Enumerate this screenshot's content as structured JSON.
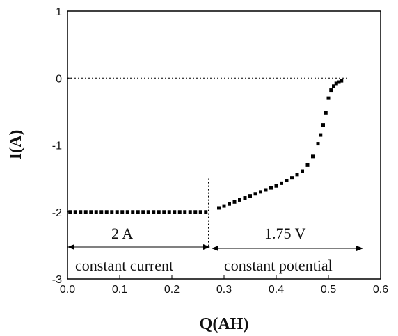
{
  "chart_data": {
    "type": "scatter",
    "xlabel": "Q(AH)",
    "ylabel": "I(A)",
    "xlim": [
      0.0,
      0.6
    ],
    "ylim": [
      -3,
      1
    ],
    "x_ticks": [
      "0.0",
      "0.1",
      "0.2",
      "0.3",
      "0.4",
      "0.5",
      "0.6"
    ],
    "y_ticks": [
      "1",
      "0",
      "-1",
      "-2",
      "-3"
    ],
    "grid": false,
    "series": [
      {
        "name": "",
        "color": "#000000",
        "x": [
          0.005,
          0.015,
          0.025,
          0.035,
          0.045,
          0.055,
          0.065,
          0.075,
          0.085,
          0.095,
          0.105,
          0.115,
          0.125,
          0.135,
          0.145,
          0.155,
          0.165,
          0.175,
          0.185,
          0.195,
          0.205,
          0.215,
          0.225,
          0.235,
          0.245,
          0.255,
          0.265,
          0.29,
          0.3,
          0.31,
          0.32,
          0.33,
          0.34,
          0.35,
          0.36,
          0.37,
          0.38,
          0.39,
          0.4,
          0.41,
          0.42,
          0.43,
          0.44,
          0.45,
          0.46,
          0.47,
          0.48,
          0.485,
          0.49,
          0.495,
          0.5,
          0.505,
          0.51,
          0.515,
          0.52,
          0.525
        ],
        "y": [
          -2,
          -2,
          -2,
          -2,
          -2,
          -2,
          -2,
          -2,
          -2,
          -2,
          -2,
          -2,
          -2,
          -2,
          -2,
          -2,
          -2,
          -2,
          -2,
          -2,
          -2,
          -2,
          -2,
          -2,
          -2,
          -2,
          -2,
          -1.94,
          -1.91,
          -1.88,
          -1.85,
          -1.82,
          -1.79,
          -1.76,
          -1.73,
          -1.7,
          -1.67,
          -1.64,
          -1.61,
          -1.57,
          -1.53,
          -1.49,
          -1.44,
          -1.39,
          -1.3,
          -1.17,
          -0.98,
          -0.85,
          -0.7,
          -0.52,
          -0.3,
          -0.18,
          -0.12,
          -0.08,
          -0.06,
          -0.04
        ]
      }
    ],
    "reference_lines": [
      {
        "orientation": "horizontal",
        "y": 0,
        "style": "dotted"
      },
      {
        "orientation": "vertical",
        "x": 0.27,
        "style": "dotted"
      }
    ],
    "annotations": {
      "left_value": "2 A",
      "right_value": "1.75 V",
      "left_mode": "constant current",
      "right_mode": "constant potential"
    }
  }
}
